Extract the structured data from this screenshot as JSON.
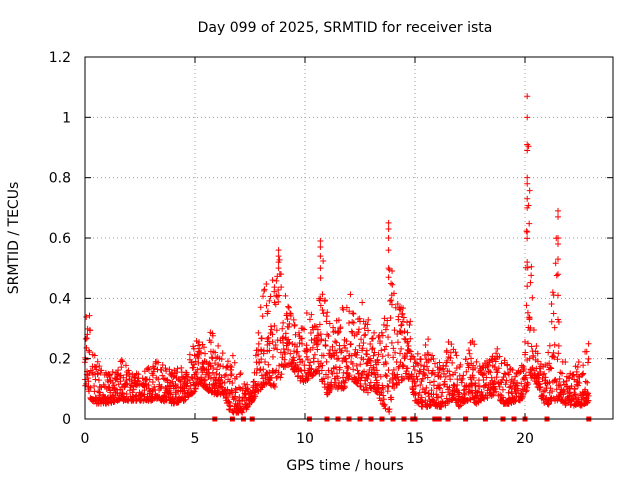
{
  "chart_data": {
    "type": "scatter",
    "title": "Day 099 of 2025, SRMTID for receiver ista",
    "xlabel": "GPS time / hours",
    "ylabel": "SRMTID / TECUs",
    "xlim": [
      0,
      24
    ],
    "ylim": [
      0,
      1.2
    ],
    "x_ticks": [
      0,
      5,
      10,
      15,
      20
    ],
    "y_ticks": [
      0,
      0.2,
      0.4,
      0.6,
      0.8,
      1,
      1.2
    ],
    "x_tick_labels": [
      "0",
      "5",
      "10",
      "15",
      "20"
    ],
    "y_tick_labels": [
      "0",
      "0.2",
      "0.4",
      "0.6",
      "0.8",
      "1",
      "1.2"
    ],
    "grid": true,
    "marker": "+",
    "color": "#ff0000",
    "series": [
      {
        "name": "SRMTID",
        "envelope": {
          "x": [
            0.0,
            0.1,
            0.2,
            0.5,
            1.0,
            1.5,
            1.7,
            2.0,
            2.5,
            3.0,
            3.2,
            3.5,
            4.0,
            4.5,
            4.8,
            5.0,
            5.2,
            5.5,
            5.8,
            6.0,
            6.3,
            6.6,
            6.8,
            7.2,
            7.6,
            7.8,
            8.0,
            8.3,
            8.6,
            8.8,
            9.0,
            9.3,
            9.6,
            9.8,
            10.0,
            10.3,
            10.6,
            10.8,
            11.0,
            11.3,
            11.6,
            11.8,
            12.0,
            12.3,
            12.6,
            12.8,
            13.0,
            13.3,
            13.6,
            13.8,
            14.0,
            14.3,
            14.6,
            14.8,
            15.0,
            15.3,
            15.6,
            15.8,
            16.0,
            16.3,
            16.6,
            16.8,
            17.0,
            17.3,
            17.6,
            17.8,
            18.0,
            18.3,
            18.6,
            18.8,
            19.0,
            19.3,
            19.6,
            19.8,
            20.0,
            20.1,
            20.2,
            20.3,
            20.5,
            20.8,
            21.0,
            21.2,
            21.4,
            21.5,
            21.7,
            21.9,
            22.1,
            22.4,
            22.6,
            22.8,
            22.9
          ],
          "low": [
            0.1,
            0.08,
            0.07,
            0.05,
            0.05,
            0.06,
            0.06,
            0.06,
            0.06,
            0.06,
            0.07,
            0.06,
            0.05,
            0.06,
            0.08,
            0.09,
            0.12,
            0.1,
            0.08,
            0.08,
            0.08,
            0.02,
            0.02,
            0.02,
            0.06,
            0.08,
            0.1,
            0.12,
            0.1,
            0.12,
            0.16,
            0.18,
            0.15,
            0.12,
            0.12,
            0.14,
            0.16,
            0.12,
            0.08,
            0.1,
            0.1,
            0.1,
            0.14,
            0.12,
            0.1,
            0.08,
            0.1,
            0.08,
            0.04,
            0.01,
            0.1,
            0.12,
            0.14,
            0.12,
            0.06,
            0.04,
            0.04,
            0.05,
            0.04,
            0.04,
            0.06,
            0.06,
            0.04,
            0.06,
            0.06,
            0.05,
            0.06,
            0.07,
            0.08,
            0.07,
            0.05,
            0.05,
            0.06,
            0.06,
            0.08,
            0.1,
            0.12,
            0.14,
            0.12,
            0.06,
            0.04,
            0.06,
            0.05,
            0.06,
            0.06,
            0.04,
            0.04,
            0.05,
            0.04,
            0.05,
            0.06
          ],
          "high": [
            0.3,
            0.38,
            0.36,
            0.2,
            0.15,
            0.18,
            0.21,
            0.16,
            0.15,
            0.18,
            0.2,
            0.19,
            0.16,
            0.18,
            0.22,
            0.26,
            0.26,
            0.24,
            0.32,
            0.25,
            0.24,
            0.2,
            0.22,
            0.15,
            0.08,
            0.26,
            0.4,
            0.46,
            0.5,
            0.56,
            0.44,
            0.38,
            0.32,
            0.35,
            0.41,
            0.35,
            0.38,
            0.59,
            0.36,
            0.3,
            0.36,
            0.4,
            0.47,
            0.34,
            0.4,
            0.38,
            0.28,
            0.3,
            0.35,
            0.65,
            0.45,
            0.4,
            0.34,
            0.33,
            0.22,
            0.22,
            0.28,
            0.24,
            0.2,
            0.18,
            0.28,
            0.26,
            0.18,
            0.2,
            0.28,
            0.22,
            0.18,
            0.2,
            0.22,
            0.24,
            0.22,
            0.18,
            0.16,
            0.18,
            0.2,
            1.07,
            0.9,
            0.45,
            0.26,
            0.18,
            0.22,
            0.38,
            0.69,
            0.4,
            0.22,
            0.18,
            0.16,
            0.2,
            0.16,
            0.26,
            0.25
          ]
        },
        "spikes": [
          {
            "x": 20.1,
            "y": [
              1.07,
              1.0,
              0.91,
              0.89,
              0.8,
              0.78,
              0.73,
              0.7,
              0.62,
              0.52,
              0.44
            ]
          },
          {
            "x": 21.5,
            "y": [
              0.69,
              0.67,
              0.6,
              0.58,
              0.53,
              0.48,
              0.41,
              0.33
            ]
          },
          {
            "x": 13.8,
            "y": [
              0.65,
              0.63,
              0.6,
              0.56,
              0.5,
              0.47
            ]
          },
          {
            "x": 10.7,
            "y": [
              0.59,
              0.57,
              0.54,
              0.5
            ]
          },
          {
            "x": 8.8,
            "y": [
              0.56,
              0.54,
              0.52,
              0.5
            ]
          }
        ],
        "zero_markers_x": [
          5.9,
          6.7,
          7.2,
          7.6,
          10.2,
          11.0,
          11.5,
          12.0,
          12.5,
          13.0,
          13.5,
          14.0,
          14.5,
          14.9,
          15.0,
          15.9,
          16.1,
          16.5,
          17.3,
          18.2,
          19.0,
          19.5,
          20.0,
          21.0,
          22.9
        ]
      }
    ]
  }
}
